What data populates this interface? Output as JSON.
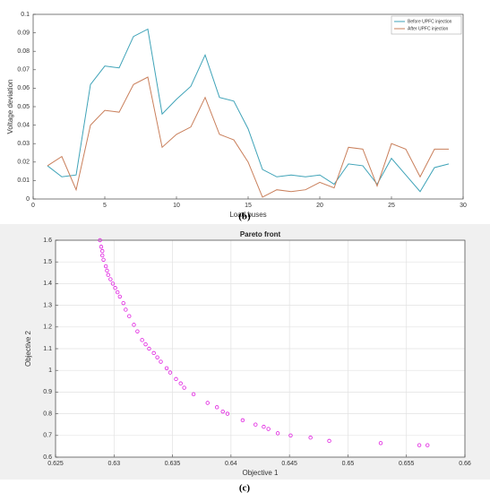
{
  "chart_data": [
    {
      "type": "line",
      "caption": "(b)",
      "xlabel": "Load buses",
      "ylabel": "Voltage deviation",
      "x": [
        1,
        2,
        3,
        4,
        5,
        6,
        7,
        8,
        9,
        10,
        11,
        12,
        13,
        14,
        15,
        16,
        17,
        18,
        19,
        20,
        21,
        22,
        23,
        24,
        25,
        26,
        27,
        28,
        29
      ],
      "series": [
        {
          "name": "Before UPFC injection",
          "color": "#3fa3b8",
          "values": [
            0.018,
            0.012,
            0.013,
            0.062,
            0.072,
            0.071,
            0.088,
            0.092,
            0.046,
            0.054,
            0.061,
            0.078,
            0.055,
            0.053,
            0.038,
            0.016,
            0.012,
            0.013,
            0.012,
            0.013,
            0.008,
            0.019,
            0.018,
            0.008,
            0.022,
            0.013,
            0.004,
            0.017,
            0.019
          ]
        },
        {
          "name": "After UPFC injection",
          "color": "#c97f5b",
          "values": [
            0.018,
            0.023,
            0.005,
            0.04,
            0.048,
            0.047,
            0.062,
            0.066,
            0.028,
            0.035,
            0.039,
            0.055,
            0.035,
            0.032,
            0.02,
            0.001,
            0.005,
            0.004,
            0.005,
            0.009,
            0.006,
            0.028,
            0.027,
            0.007,
            0.03,
            0.027,
            0.012,
            0.027,
            0.027
          ]
        }
      ],
      "xlim": [
        0,
        30
      ],
      "xticks": [
        0,
        5,
        10,
        15,
        20,
        25,
        30
      ],
      "ylim": [
        0,
        0.1
      ],
      "yticks": [
        0,
        0.01,
        0.02,
        0.03,
        0.04,
        0.05,
        0.06,
        0.07,
        0.08,
        0.09,
        0.1
      ],
      "grid": false,
      "legend": "upper-right"
    },
    {
      "type": "scatter",
      "caption": "(c)",
      "title": "Pareto front",
      "xlabel": "Objective 1",
      "ylabel": "Objective 2",
      "color": "#e020e0",
      "x": [
        0.6288,
        0.6289,
        0.629,
        0.629,
        0.6291,
        0.6293,
        0.6294,
        0.6295,
        0.6297,
        0.6299,
        0.6301,
        0.6303,
        0.6305,
        0.6308,
        0.631,
        0.6313,
        0.6317,
        0.632,
        0.6324,
        0.6327,
        0.633,
        0.6334,
        0.6337,
        0.634,
        0.6345,
        0.6348,
        0.6353,
        0.6357,
        0.636,
        0.6368,
        0.638,
        0.6388,
        0.6393,
        0.6397,
        0.641,
        0.6421,
        0.6428,
        0.6432,
        0.644,
        0.6451,
        0.6468,
        0.6484,
        0.6528,
        0.6561,
        0.6568
      ],
      "values": [
        1.6,
        1.57,
        1.55,
        1.53,
        1.51,
        1.48,
        1.46,
        1.44,
        1.42,
        1.4,
        1.38,
        1.36,
        1.34,
        1.31,
        1.28,
        1.25,
        1.21,
        1.18,
        1.14,
        1.12,
        1.1,
        1.08,
        1.06,
        1.04,
        1.01,
        0.99,
        0.96,
        0.94,
        0.92,
        0.89,
        0.85,
        0.83,
        0.81,
        0.8,
        0.77,
        0.75,
        0.74,
        0.73,
        0.71,
        0.7,
        0.69,
        0.675,
        0.665,
        0.655,
        0.655
      ],
      "xlim": [
        0.625,
        0.66
      ],
      "xticks": [
        0.625,
        0.63,
        0.635,
        0.64,
        0.645,
        0.65,
        0.655,
        0.66
      ],
      "ylim": [
        0.6,
        1.6
      ],
      "yticks": [
        0.6,
        0.7,
        0.8,
        0.9,
        1,
        1.1,
        1.2,
        1.3,
        1.4,
        1.5,
        1.6
      ],
      "grid": true
    }
  ]
}
